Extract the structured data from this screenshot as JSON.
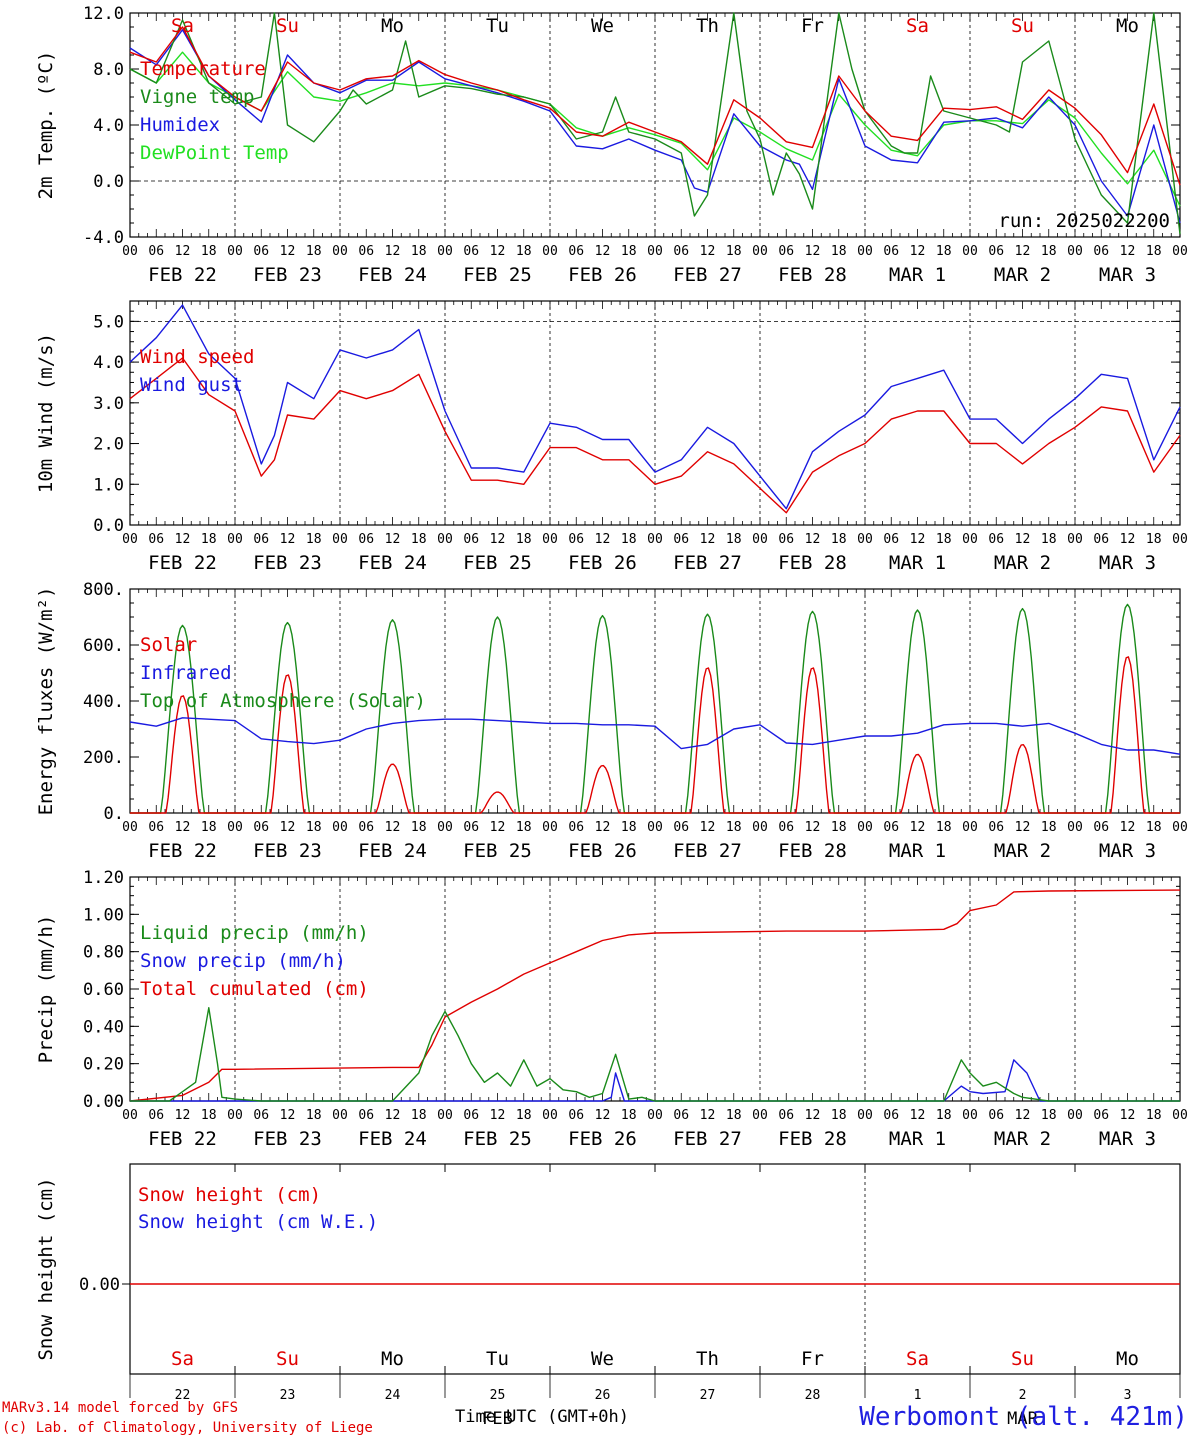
{
  "colors": {
    "red": "#e00000",
    "green": "#1a8a1a",
    "blue": "#1a1ae0",
    "lime": "#22e022",
    "axis": "#000000"
  },
  "run_label": "run: 2025022200",
  "day_names": [
    "Sa",
    "Su",
    "Mo",
    "Tu",
    "We",
    "Th",
    "Fr",
    "Sa",
    "Su",
    "Mo"
  ],
  "day_name_colors": [
    "red",
    "red",
    "black",
    "black",
    "black",
    "black",
    "black",
    "red",
    "red",
    "black"
  ],
  "date_labels": [
    "FEB 22",
    "FEB 23",
    "FEB 24",
    "FEB 25",
    "FEB 26",
    "FEB 27",
    "FEB 28",
    "MAR 1",
    "MAR 2",
    "MAR 3"
  ],
  "hour_labels": [
    "00",
    "06",
    "12",
    "18"
  ],
  "last_hour_label": "00",
  "bottom_day_numbers": [
    "22",
    "23",
    "24",
    "25",
    "26",
    "27",
    "28",
    "1",
    "2",
    "3"
  ],
  "bottom_month_labels": [
    "FEB",
    "MAR"
  ],
  "time_axis_label": "Time UTC (GMT+0h)",
  "footer_line1": "MARv3.14 model forced by GFS",
  "footer_line2": "(c) Lab. of Climatology, University of Liege",
  "station": "Werbomont (alt. 421m)",
  "chart_data": [
    {
      "type": "line",
      "ylabel": "2m Temp. (ºC)",
      "ylim": [
        -4,
        12
      ],
      "ticks": [
        "-4.0",
        "0.0",
        "4.0",
        "8.0",
        "12.0"
      ],
      "tick_values": [
        -4,
        0,
        4,
        8,
        12
      ],
      "dashed_y": [
        0
      ],
      "x_unit": "hours since FEB 22 00 UTC",
      "xlim": [
        0,
        240
      ],
      "series": [
        {
          "name": "Temperature",
          "color": "red",
          "x": [
            0,
            6,
            12,
            18,
            24,
            30,
            36,
            42,
            48,
            54,
            60,
            66,
            72,
            78,
            84,
            90,
            96,
            102,
            108,
            114,
            120,
            126,
            132,
            138,
            144,
            150,
            156,
            162,
            168,
            174,
            180,
            186,
            192,
            198,
            204,
            210,
            216,
            222,
            228,
            234,
            240
          ],
          "y": [
            9.2,
            8.5,
            11.0,
            7.5,
            6.0,
            5.0,
            8.5,
            7.0,
            6.5,
            7.3,
            7.5,
            8.6,
            7.6,
            7.0,
            6.5,
            5.8,
            5.2,
            3.5,
            3.2,
            4.2,
            3.5,
            2.8,
            1.2,
            5.8,
            4.5,
            2.8,
            2.4,
            7.5,
            5.0,
            3.2,
            2.9,
            5.2,
            5.1,
            5.3,
            4.4,
            6.5,
            5.2,
            3.3,
            0.6,
            5.5,
            -0.3
          ]
        },
        {
          "name": "Vigne temp",
          "color": "green",
          "x": [
            0,
            6,
            12,
            18,
            24,
            30,
            33,
            36,
            42,
            48,
            51,
            54,
            60,
            63,
            66,
            72,
            78,
            84,
            90,
            96,
            102,
            108,
            111,
            114,
            120,
            126,
            129,
            132,
            138,
            141,
            144,
            147,
            150,
            153,
            156,
            162,
            165,
            168,
            174,
            177,
            180,
            183,
            186,
            192,
            198,
            201,
            204,
            210,
            216,
            219,
            222,
            228,
            234,
            240
          ],
          "y": [
            8.0,
            7.0,
            11.5,
            7.0,
            5.5,
            6.0,
            14.5,
            4.0,
            2.8,
            5.0,
            6.5,
            5.5,
            6.5,
            10.0,
            6.0,
            6.8,
            6.6,
            6.2,
            6.0,
            5.5,
            3.0,
            3.5,
            6.0,
            3.5,
            3.0,
            2.0,
            -2.5,
            -1.0,
            13.5,
            5.0,
            3.0,
            -1.0,
            2.0,
            0.5,
            -2.0,
            13.0,
            8.0,
            5.0,
            2.5,
            2.0,
            2.0,
            7.5,
            5.0,
            4.5,
            4.0,
            3.5,
            8.5,
            10.0,
            3.0,
            1.0,
            -1.0,
            -3.0,
            13.5,
            -3.8
          ]
        },
        {
          "name": "Humidex",
          "color": "blue",
          "x": [
            0,
            6,
            12,
            18,
            24,
            30,
            36,
            42,
            48,
            54,
            60,
            66,
            72,
            78,
            84,
            90,
            96,
            102,
            108,
            114,
            120,
            126,
            129,
            132,
            138,
            144,
            150,
            153,
            156,
            162,
            168,
            174,
            180,
            186,
            192,
            198,
            204,
            210,
            216,
            222,
            228,
            234,
            240
          ],
          "y": [
            9.5,
            8.3,
            10.8,
            7.5,
            5.8,
            4.2,
            9.0,
            7.0,
            6.3,
            7.2,
            7.2,
            8.5,
            7.3,
            6.8,
            6.3,
            5.7,
            5.0,
            2.5,
            2.3,
            3.0,
            2.2,
            1.5,
            -0.5,
            -0.8,
            4.8,
            2.5,
            1.5,
            1.2,
            -0.6,
            7.3,
            2.5,
            1.5,
            1.3,
            4.2,
            4.3,
            4.5,
            3.8,
            6.0,
            4.0,
            0.0,
            -2.5,
            4.0,
            -3.0
          ]
        },
        {
          "name": "DewPoint Temp",
          "color": "lime",
          "x": [
            0,
            6,
            12,
            18,
            24,
            30,
            36,
            42,
            48,
            54,
            60,
            66,
            72,
            78,
            84,
            90,
            96,
            102,
            108,
            114,
            120,
            126,
            132,
            138,
            144,
            150,
            156,
            162,
            168,
            174,
            180,
            186,
            192,
            198,
            204,
            210,
            216,
            222,
            228,
            234,
            240
          ],
          "y": [
            8.0,
            7.0,
            9.2,
            7.0,
            6.0,
            5.0,
            7.8,
            6.0,
            5.7,
            6.3,
            7.0,
            6.8,
            7.0,
            6.8,
            6.5,
            6.0,
            5.5,
            3.8,
            3.2,
            3.8,
            3.3,
            2.7,
            0.8,
            4.5,
            3.5,
            2.3,
            1.5,
            6.2,
            4.0,
            2.2,
            1.8,
            4.0,
            4.3,
            4.3,
            4.1,
            5.8,
            4.5,
            2.0,
            -0.2,
            2.2,
            -1.8
          ]
        }
      ],
      "legend_placement": "top-left"
    },
    {
      "type": "line",
      "ylabel": "10m Wind (m/s)",
      "ylim": [
        0,
        5.5
      ],
      "ticks": [
        "0.0",
        "1.0",
        "2.0",
        "3.0",
        "4.0",
        "5.0"
      ],
      "tick_values": [
        0,
        1,
        2,
        3,
        4,
        5
      ],
      "dashed_y": [
        5
      ],
      "x_unit": "hours since FEB 22 00 UTC",
      "xlim": [
        0,
        240
      ],
      "series": [
        {
          "name": "Wind speed",
          "color": "red",
          "x": [
            0,
            6,
            12,
            18,
            24,
            30,
            33,
            36,
            42,
            48,
            54,
            60,
            66,
            72,
            78,
            84,
            90,
            96,
            102,
            108,
            114,
            120,
            126,
            132,
            138,
            144,
            150,
            156,
            162,
            168,
            174,
            180,
            186,
            192,
            198,
            204,
            210,
            216,
            222,
            228,
            234,
            240
          ],
          "y": [
            3.1,
            3.6,
            4.1,
            3.2,
            2.8,
            1.2,
            1.6,
            2.7,
            2.6,
            3.3,
            3.1,
            3.3,
            3.7,
            2.3,
            1.1,
            1.1,
            1.0,
            1.9,
            1.9,
            1.6,
            1.6,
            1.0,
            1.2,
            1.8,
            1.5,
            0.9,
            0.3,
            1.3,
            1.7,
            2.0,
            2.6,
            2.8,
            2.8,
            2.0,
            2.0,
            1.5,
            2.0,
            2.4,
            2.9,
            2.8,
            1.3,
            2.2
          ]
        },
        {
          "name": "Wind gust",
          "color": "blue",
          "x": [
            0,
            6,
            12,
            18,
            24,
            30,
            33,
            36,
            42,
            48,
            54,
            60,
            66,
            72,
            78,
            84,
            90,
            96,
            102,
            108,
            114,
            120,
            126,
            132,
            138,
            144,
            150,
            156,
            162,
            168,
            174,
            180,
            186,
            192,
            198,
            204,
            210,
            216,
            222,
            228,
            234,
            240
          ],
          "y": [
            4.0,
            4.6,
            5.4,
            4.2,
            3.6,
            1.5,
            2.2,
            3.5,
            3.1,
            4.3,
            4.1,
            4.3,
            4.8,
            2.8,
            1.4,
            1.4,
            1.3,
            2.5,
            2.4,
            2.1,
            2.1,
            1.3,
            1.6,
            2.4,
            2.0,
            1.2,
            0.4,
            1.8,
            2.3,
            2.7,
            3.4,
            3.6,
            3.8,
            2.6,
            2.6,
            2.0,
            2.6,
            3.1,
            3.7,
            3.6,
            1.6,
            2.9
          ]
        }
      ],
      "legend_placement": "top-left"
    },
    {
      "type": "line",
      "ylabel": "Energy fluxes (W/m²)",
      "ylim": [
        0,
        800
      ],
      "ticks": [
        "0.",
        "200.",
        "400.",
        "600.",
        "800."
      ],
      "tick_values": [
        0,
        200,
        400,
        600,
        800
      ],
      "dashed_y": [],
      "x_unit": "hours since FEB 22 00 UTC",
      "xlim": [
        0,
        240
      ],
      "series": [
        {
          "name": "Solar",
          "color": "red",
          "daily_peak_w_m2": [
            420,
            495,
            175,
            75,
            170,
            520,
            520,
            210,
            245,
            560
          ],
          "peak_hour": 12
        },
        {
          "name": "Infrared",
          "color": "blue",
          "x": [
            0,
            6,
            12,
            18,
            24,
            30,
            36,
            42,
            48,
            54,
            60,
            66,
            72,
            78,
            84,
            90,
            96,
            102,
            108,
            114,
            120,
            126,
            132,
            138,
            144,
            150,
            156,
            162,
            168,
            174,
            180,
            186,
            192,
            198,
            204,
            210,
            216,
            222,
            228,
            234,
            240
          ],
          "y": [
            325,
            310,
            340,
            335,
            330,
            265,
            255,
            248,
            260,
            300,
            320,
            330,
            335,
            335,
            330,
            325,
            320,
            320,
            315,
            315,
            310,
            230,
            245,
            300,
            315,
            250,
            245,
            260,
            275,
            275,
            285,
            315,
            320,
            320,
            310,
            320,
            285,
            245,
            225,
            225,
            210
          ]
        },
        {
          "name": "Top of Atmosphere (Solar)",
          "color": "green",
          "daily_peak_w_m2": [
            670,
            680,
            690,
            700,
            705,
            710,
            720,
            725,
            730,
            745
          ],
          "peak_hour": 12
        }
      ],
      "legend_placement": "top-left"
    },
    {
      "type": "line",
      "ylabel": "Precip (mm/h)",
      "ylim": [
        0,
        1.2
      ],
      "ticks": [
        "0.00",
        "0.20",
        "0.40",
        "0.60",
        "0.80",
        "1.00",
        "1.20"
      ],
      "tick_values": [
        0,
        0.2,
        0.4,
        0.6,
        0.8,
        1.0,
        1.2
      ],
      "dashed_y": [],
      "x_unit": "hours since FEB 22 00 UTC",
      "xlim": [
        0,
        240
      ],
      "series": [
        {
          "name": "Liquid precip (mm/h)",
          "color": "green",
          "x": [
            0,
            6,
            9,
            12,
            15,
            18,
            20,
            21,
            24,
            30,
            48,
            60,
            66,
            69,
            72,
            75,
            78,
            81,
            84,
            87,
            90,
            93,
            96,
            99,
            102,
            105,
            108,
            111,
            114,
            117,
            120,
            132,
            150,
            168,
            186,
            190,
            192,
            195,
            198,
            202,
            204,
            210,
            240
          ],
          "y": [
            0,
            0,
            0,
            0.05,
            0.1,
            0.5,
            0.2,
            0.02,
            0.01,
            0,
            0,
            0,
            0.15,
            0.35,
            0.48,
            0.35,
            0.2,
            0.1,
            0.15,
            0.08,
            0.22,
            0.08,
            0.12,
            0.06,
            0.05,
            0.02,
            0.04,
            0.25,
            0.01,
            0.02,
            0,
            0,
            0,
            0,
            0,
            0.22,
            0.15,
            0.08,
            0.1,
            0.04,
            0.02,
            0,
            0
          ]
        },
        {
          "name": "Snow precip (mm/h)",
          "color": "blue",
          "x": [
            0,
            108,
            110,
            111,
            113,
            186,
            190,
            192,
            195,
            200,
            202,
            205,
            208,
            240
          ],
          "y": [
            0,
            0,
            0.02,
            0.15,
            0,
            0,
            0.08,
            0.05,
            0.04,
            0.05,
            0.22,
            0.15,
            0,
            0
          ]
        },
        {
          "name": "Total cumulated (cm)",
          "color": "red",
          "x": [
            0,
            12,
            18,
            21,
            24,
            60,
            66,
            69,
            72,
            78,
            84,
            90,
            96,
            102,
            108,
            114,
            120,
            150,
            168,
            186,
            189,
            192,
            198,
            202,
            210,
            240
          ],
          "y": [
            0,
            0.03,
            0.1,
            0.17,
            0.17,
            0.18,
            0.18,
            0.3,
            0.45,
            0.53,
            0.6,
            0.68,
            0.74,
            0.8,
            0.86,
            0.89,
            0.9,
            0.91,
            0.91,
            0.92,
            0.95,
            1.02,
            1.05,
            1.12,
            1.125,
            1.13
          ]
        }
      ],
      "legend_placement": "top-left"
    },
    {
      "type": "line",
      "ylabel": "Snow height (cm)",
      "ticks": [
        "0.00"
      ],
      "tick_values": [
        0
      ],
      "x_unit": "days FEB 22 .. MAR 3",
      "xlim": [
        0,
        10
      ],
      "series": [
        {
          "name": "Snow height (cm)",
          "color": "red",
          "x": [
            0,
            10
          ],
          "y": [
            0,
            0
          ]
        },
        {
          "name": "Snow height (cm W.E.)",
          "color": "blue",
          "x": [],
          "y": []
        }
      ],
      "legend_placement": "top-left"
    }
  ]
}
